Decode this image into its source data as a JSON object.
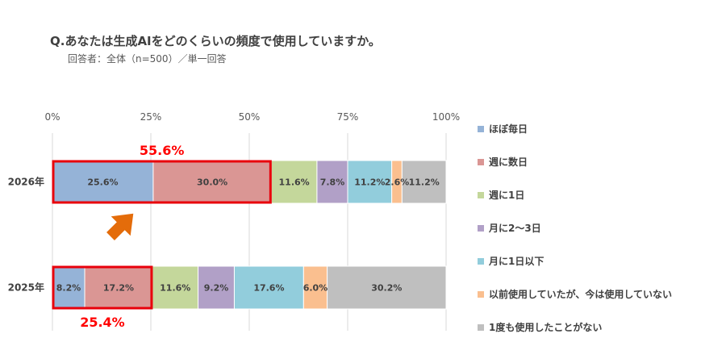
{
  "title": "Q.あなたは生成AIをどのくらいの頻度で使用していますか。",
  "subtitle": "回答者：全体（n=500）／単一回答",
  "chart_data": {
    "type": "bar",
    "orientation": "horizontal",
    "stacked": true,
    "normalized": true,
    "categories": [
      "2026年",
      "2025年"
    ],
    "xlim": [
      0,
      100
    ],
    "x_ticks": [
      "0%",
      "25%",
      "50%",
      "75%",
      "100%"
    ],
    "grid": true,
    "legend_position": "right",
    "series": [
      {
        "name": "ほぼ毎日",
        "color": "#95b3d7",
        "values": [
          25.6,
          8.2
        ]
      },
      {
        "name": "週に数日",
        "color": "#da9694",
        "values": [
          30.0,
          17.2
        ]
      },
      {
        "name": "週に1日",
        "color": "#c4d79b",
        "values": [
          11.6,
          11.6
        ]
      },
      {
        "name": "月に2～3日",
        "color": "#b1a0c7",
        "values": [
          7.8,
          9.2
        ]
      },
      {
        "name": "月に1日以下",
        "color": "#92cddc",
        "values": [
          11.2,
          17.6
        ]
      },
      {
        "name": "以前使用していたが、今は使用していない",
        "color": "#fabf8f",
        "values": [
          2.6,
          6.0
        ]
      },
      {
        "name": "1度も使用したことがない",
        "color": "#bfbfbf",
        "values": [
          11.2,
          30.2
        ]
      }
    ],
    "data_labels": [
      [
        "25.6%",
        "30.0%",
        "11.6%",
        "7.8%",
        "11.2%",
        "2.6%",
        "11.2%"
      ],
      [
        "8.2%",
        "17.2%",
        "11.6%",
        "9.2%",
        "17.6%",
        "6.0%",
        "30.2%"
      ]
    ],
    "annotations": [
      {
        "text": "55.6%",
        "category": "2026年",
        "series_span": [
          0,
          1
        ],
        "position": "above",
        "color": "#ff0000"
      },
      {
        "text": "25.4%",
        "category": "2025年",
        "series_span": [
          0,
          1
        ],
        "position": "below",
        "color": "#ff0000"
      }
    ],
    "highlight_color": "#e8000b",
    "arrow_color": "#e46c0a"
  }
}
